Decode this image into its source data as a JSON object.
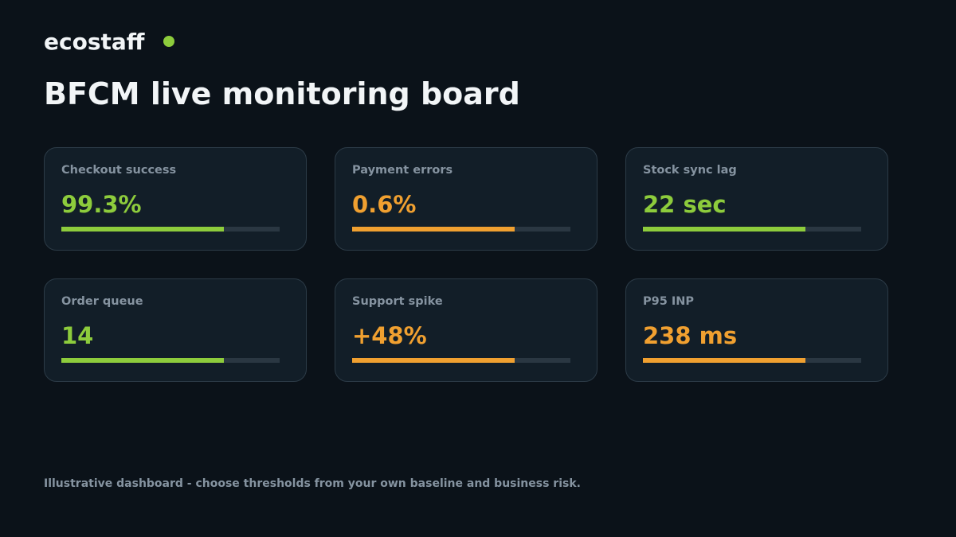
{
  "header": {
    "brand": "ecostaff",
    "title": "BFCM live monitoring board"
  },
  "cards": [
    {
      "label": "Checkout success",
      "value": "99.3%",
      "color": "#8dcc3c"
    },
    {
      "label": "Payment errors",
      "value": "0.6%",
      "color": "#f0a030"
    },
    {
      "label": "Stock sync lag",
      "value": "22 sec",
      "color": "#8dcc3c"
    },
    {
      "label": "Order queue",
      "value": "14",
      "color": "#8dcc3c"
    },
    {
      "label": "Support spike",
      "value": "+48%",
      "color": "#f0a030"
    },
    {
      "label": "P95 INP",
      "value": "238 ms",
      "color": "#f0a030"
    }
  ],
  "footer": {
    "note": "Illustrative dashboard - choose thresholds from your own baseline and business risk."
  }
}
